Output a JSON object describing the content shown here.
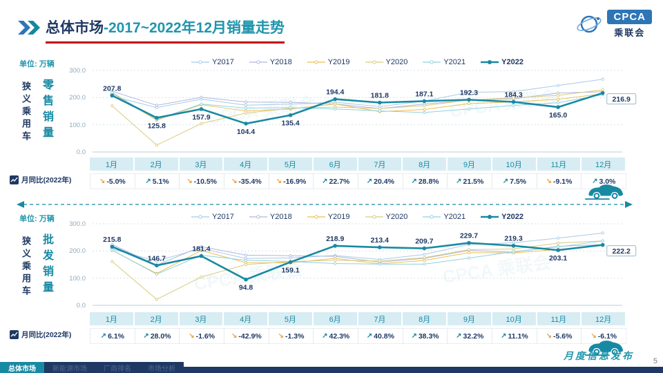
{
  "header": {
    "title_primary": "总体市场",
    "title_secondary": "-2017~2022年12月销量走势",
    "logo": {
      "cpca": "CPCA",
      "name": "乘联会"
    }
  },
  "colors": {
    "accent_teal": "#1889a3",
    "navy": "#1f3864",
    "underline_red": "#c00000",
    "up": "#1889a3",
    "down": "#eaa23e",
    "month_cell_bg": "#d7edf3"
  },
  "charts": [
    {
      "unit": "单位: 万辆",
      "side_label": "狭义乘用车",
      "metric_label": "零售销量",
      "yoy_title": "月同比(2022年)",
      "y_ticks": [
        "300.0",
        "200.0",
        "100.0",
        "0.0"
      ],
      "months": [
        "1月",
        "2月",
        "3月",
        "4月",
        "5月",
        "6月",
        "7月",
        "8月",
        "9月",
        "10月",
        "11月",
        "12月"
      ],
      "yoy": [
        {
          "text": "-5.0%",
          "dir": "down"
        },
        {
          "text": "5.1%",
          "dir": "up"
        },
        {
          "text": "-10.5%",
          "dir": "down"
        },
        {
          "text": "-35.4%",
          "dir": "down"
        },
        {
          "text": "-16.9%",
          "dir": "down"
        },
        {
          "text": "22.7%",
          "dir": "up"
        },
        {
          "text": "20.4%",
          "dir": "up"
        },
        {
          "text": "28.8%",
          "dir": "up"
        },
        {
          "text": "21.5%",
          "dir": "up"
        },
        {
          "text": "7.5%",
          "dir": "up"
        },
        {
          "text": "-9.1%",
          "dir": "down"
        },
        {
          "text": "3.0%",
          "dir": "up"
        }
      ]
    },
    {
      "unit": "单位: 万辆",
      "side_label": "狭义乘用车",
      "metric_label": "批发销量",
      "yoy_title": "月同比(2022年)",
      "y_ticks": [
        "300.0",
        "200.0",
        "100.0",
        "0.0"
      ],
      "months": [
        "1月",
        "2月",
        "3月",
        "4月",
        "5月",
        "6月",
        "7月",
        "8月",
        "9月",
        "10月",
        "11月",
        "12月"
      ],
      "yoy": [
        {
          "text": "6.1%",
          "dir": "up"
        },
        {
          "text": "28.0%",
          "dir": "up"
        },
        {
          "text": "-1.6%",
          "dir": "down"
        },
        {
          "text": "-42.9%",
          "dir": "down"
        },
        {
          "text": "-1.3%",
          "dir": "down"
        },
        {
          "text": "42.3%",
          "dir": "up"
        },
        {
          "text": "40.8%",
          "dir": "up"
        },
        {
          "text": "38.3%",
          "dir": "up"
        },
        {
          "text": "32.2%",
          "dir": "up"
        },
        {
          "text": "11.1%",
          "dir": "up"
        },
        {
          "text": "-5.6%",
          "dir": "down"
        },
        {
          "text": "-6.1%",
          "dir": "down"
        }
      ]
    }
  ],
  "chart_data": [
    {
      "type": "line",
      "title": "狭义乘用车零售销量",
      "ylabel": "万辆",
      "ylim": [
        0,
        300
      ],
      "grid": true,
      "legend_position": "top",
      "x": [
        "1月",
        "2月",
        "3月",
        "4月",
        "5月",
        "6月",
        "7月",
        "8月",
        "9月",
        "10月",
        "11月",
        "12月"
      ],
      "series": [
        {
          "name": "Y2017",
          "color": "#a8c9e6",
          "values": [
            205.5,
            163.3,
            194.5,
            172.2,
            176.1,
            183.1,
            167.0,
            187.5,
            219.5,
            222.2,
            244.7,
            267.7
          ]
        },
        {
          "name": "Y2018",
          "color": "#aeb6dc",
          "values": [
            223.6,
            171.5,
            201.1,
            184.0,
            182.7,
            176.8,
            159.8,
            176.5,
            190.3,
            195.3,
            216.8,
            221.7
          ]
        },
        {
          "name": "Y2019",
          "color": "#e9bf55",
          "values": [
            216.1,
            117.0,
            174.0,
            150.8,
            158.2,
            176.6,
            148.5,
            156.4,
            178.1,
            184.3,
            193.7,
            214.1
          ]
        },
        {
          "name": "Y2020",
          "color": "#d9ca7e",
          "values": [
            169.9,
            25.2,
            104.5,
            142.9,
            160.9,
            165.4,
            159.8,
            170.3,
            191.0,
            199.2,
            208.1,
            228.8
          ]
        },
        {
          "name": "Y2021",
          "color": "#8fd1e0",
          "values": [
            218.7,
            119.7,
            176.4,
            161.6,
            162.9,
            158.4,
            151.0,
            145.3,
            158.3,
            171.4,
            181.5,
            210.6
          ]
        },
        {
          "name": "Y2022",
          "color": "#1889a3",
          "emphasis": true,
          "values": [
            207.8,
            125.8,
            157.9,
            104.4,
            135.4,
            194.4,
            181.8,
            187.1,
            192.3,
            184.3,
            165.0,
            216.9
          ],
          "labels": [
            "207.8",
            "125.8",
            "157.9",
            "104.4",
            "135.4",
            "194.4",
            "181.8",
            "187.1",
            "192.3",
            "184.3",
            "165.0",
            "216.9"
          ],
          "label_positions": [
            "above",
            "below",
            "below",
            "below",
            "below",
            "above",
            "above",
            "above",
            "above",
            "above",
            "below",
            "box"
          ]
        }
      ]
    },
    {
      "type": "line",
      "title": "狭义乘用车批发销量",
      "ylabel": "万辆",
      "ylim": [
        0,
        300
      ],
      "grid": true,
      "legend_position": "top",
      "x": [
        "1月",
        "2月",
        "3月",
        "4月",
        "5月",
        "6月",
        "7月",
        "8月",
        "9月",
        "10月",
        "11月",
        "12月"
      ],
      "series": [
        {
          "name": "Y2017",
          "color": "#a8c9e6",
          "values": [
            207.0,
            163.1,
            209.6,
            172.5,
            174.5,
            183.3,
            168.8,
            187.2,
            224.0,
            230.3,
            247.2,
            265.9
          ]
        },
        {
          "name": "Y2018",
          "color": "#aeb6dc",
          "values": [
            223.7,
            148.0,
            216.0,
            184.7,
            182.5,
            180.3,
            159.0,
            173.0,
            202.0,
            195.5,
            217.0,
            223.3
          ]
        },
        {
          "name": "Y2019",
          "color": "#e9bf55",
          "values": [
            202.2,
            117.1,
            201.9,
            157.0,
            156.1,
            172.8,
            152.7,
            165.3,
            193.9,
            192.5,
            205.7,
            221.5
          ]
        },
        {
          "name": "Y2020",
          "color": "#d9ca7e",
          "values": [
            161.4,
            21.8,
            104.3,
            150.1,
            160.9,
            165.9,
            163.0,
            175.3,
            204.9,
            207.2,
            229.0,
            237.1
          ]
        },
        {
          "name": "Y2021",
          "color": "#8fd1e0",
          "values": [
            203.4,
            114.6,
            184.3,
            166.0,
            161.2,
            153.8,
            151.6,
            151.6,
            173.8,
            197.4,
            215.1,
            236.6
          ]
        },
        {
          "name": "Y2022",
          "color": "#1889a3",
          "emphasis": true,
          "values": [
            215.8,
            146.7,
            181.4,
            94.8,
            159.1,
            218.9,
            213.4,
            209.7,
            229.7,
            219.3,
            203.1,
            222.2
          ],
          "labels": [
            "215.8",
            "146.7",
            "181.4",
            "94.8",
            "159.1",
            "218.9",
            "213.4",
            "209.7",
            "229.7",
            "219.3",
            "203.1",
            "222.2"
          ],
          "label_positions": [
            "above",
            "above",
            "above",
            "below",
            "below",
            "above",
            "above",
            "above",
            "above",
            "above",
            "below",
            "box"
          ]
        }
      ]
    }
  ],
  "footer": {
    "tabs": [
      {
        "label": "总体市场",
        "active": true
      },
      {
        "label": "新能源市场",
        "active": false
      },
      {
        "label": "厂商排名",
        "active": false
      },
      {
        "label": "市场分析",
        "active": false
      }
    ],
    "script_text": "月度信息发布",
    "page": "5"
  },
  "watermark": "CPCA 乘联会"
}
